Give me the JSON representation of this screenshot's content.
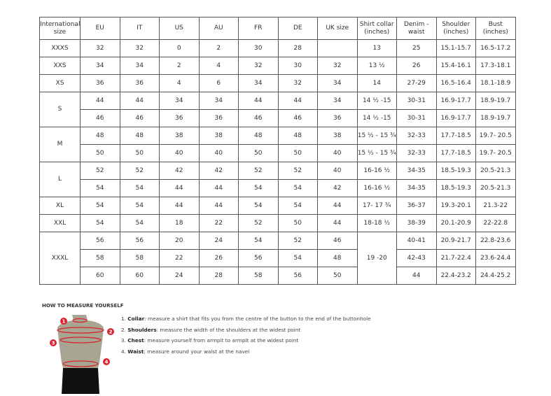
{
  "headers": [
    "International size",
    "EU",
    "IT",
    "US",
    "AU",
    "FR",
    "DE",
    "UK size",
    "Shirt collar (inches)",
    "Denim - waist",
    "Shoulder (inches)",
    "Bust (inches)"
  ],
  "groups": [
    {
      "size": "XXXS",
      "rows": [
        [
          "32",
          "32",
          "0",
          "2",
          "30",
          "28",
          "",
          "13",
          "25",
          "15.1-15.7",
          "16.5-17.2"
        ]
      ]
    },
    {
      "size": "XXS",
      "rows": [
        [
          "34",
          "34",
          "2",
          "4",
          "32",
          "30",
          "32",
          "13 ½",
          "26",
          "15.4-16.1",
          "17.3-18.1"
        ]
      ]
    },
    {
      "size": "XS",
      "rows": [
        [
          "36",
          "36",
          "4",
          "6",
          "34",
          "32",
          "34",
          "14",
          "27-29",
          "16.5-16.4",
          "18.1-18.9"
        ]
      ]
    },
    {
      "size": "S",
      "rows": [
        [
          "44",
          "44",
          "34",
          "34",
          "44",
          "44",
          "34",
          "14 ½ -15",
          "30-31",
          "16.9-17.7",
          "18.9-19.7"
        ],
        [
          "46",
          "46",
          "36",
          "36",
          "46",
          "46",
          "36",
          "14 ½ -15",
          "30-31",
          "16.9-17.7",
          "18.9-19.7"
        ]
      ]
    },
    {
      "size": "M",
      "rows": [
        [
          "48",
          "48",
          "38",
          "38",
          "48",
          "48",
          "38",
          "15 ½ - 15 ¾",
          "32-33",
          "17.7-18.5",
          "19.7- 20.5"
        ],
        [
          "50",
          "50",
          "40",
          "40",
          "50",
          "50",
          "40",
          "15 ½ - 15 ¾",
          "32-33",
          "17.7-18.5",
          "19.7- 20.5"
        ]
      ]
    },
    {
      "size": "L",
      "rows": [
        [
          "52",
          "52",
          "42",
          "42",
          "52",
          "52",
          "40",
          "16-16 ½",
          "34-35",
          "18.5-19.3",
          "20.5-21.3"
        ],
        [
          "54",
          "54",
          "44",
          "44",
          "54",
          "54",
          "42",
          "16-16 ½",
          "34-35",
          "18.5-19.3",
          "20.5-21.3"
        ]
      ]
    },
    {
      "size": "XL",
      "rows": [
        [
          "54",
          "54",
          "44",
          "44",
          "54",
          "54",
          "44",
          "17- 17 ¾",
          "36-37",
          "19.3-20.1",
          "21.3-22"
        ]
      ]
    },
    {
      "size": "XXL",
      "rows": [
        [
          "54",
          "54",
          "18",
          "22",
          "52",
          "50",
          "44",
          "18-18 ½",
          "38-39",
          "20.1-20.9",
          "22-22.8"
        ]
      ]
    },
    {
      "size": "XXXL",
      "collar_merged": "19 -20",
      "rows": [
        [
          "56",
          "56",
          "20",
          "24",
          "54",
          "52",
          "46",
          null,
          "40-41",
          "20.9-21.7",
          "22.8-23.6"
        ],
        [
          "58",
          "58",
          "22",
          "26",
          "56",
          "54",
          "48",
          null,
          "42-43",
          "21.7-22.4",
          "23.6-24.4"
        ],
        [
          "60",
          "60",
          "24",
          "28",
          "58",
          "56",
          "50",
          null,
          "44",
          "22.4-23.2",
          "24.4-25.2"
        ]
      ]
    }
  ],
  "howto": {
    "title": "HOW TO MEASURE YOURSELF",
    "steps": [
      {
        "n": "1.",
        "term": "Collar",
        "text": ": measure a shirt that fits you from the centre of the button to the end of the buttonhole"
      },
      {
        "n": "2.",
        "term": "Shoulders",
        "text": ": measure the width of the shoulders at the widest point"
      },
      {
        "n": "3.",
        "term": "Chest",
        "text": ": measure yourself from armpit to armpit at the widest point"
      },
      {
        "n": "4.",
        "term": "Waist",
        "text": ": measure around your waist at the navel"
      }
    ],
    "markers": [
      "1",
      "2",
      "3",
      "4"
    ]
  },
  "colors": {
    "marker": "#d9232e",
    "torso": "#a8a593",
    "shorts": "#111111"
  }
}
